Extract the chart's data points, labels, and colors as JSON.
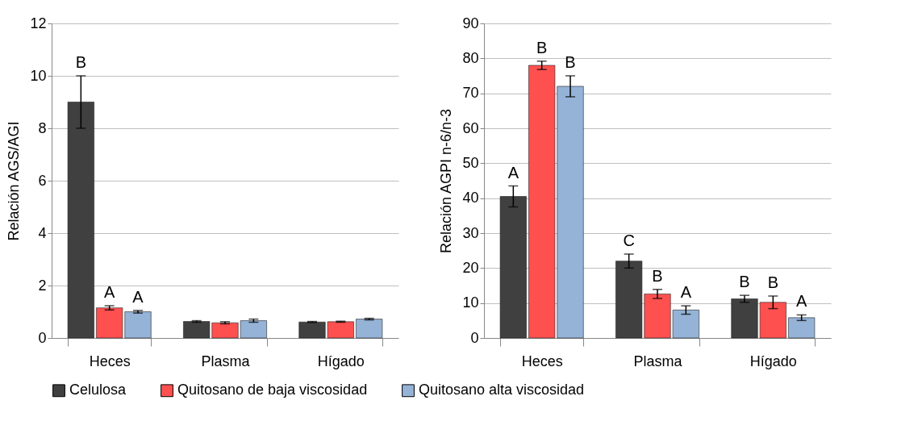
{
  "chart_data": [
    {
      "type": "bar",
      "ylabel": "Relación  AGS/AGI",
      "categories": [
        "Heces",
        "Plasma",
        "Hígado"
      ],
      "ylim": [
        0,
        12
      ],
      "yticks": [
        0,
        2,
        4,
        6,
        8,
        10,
        12
      ],
      "grid": "y",
      "legend": "bottom",
      "series": [
        {
          "name": "Celulosa",
          "color": "#404040",
          "values": [
            9.0,
            0.63,
            0.61
          ],
          "errors": [
            1.0,
            0.03,
            0.02
          ],
          "value_labels": [
            "B",
            null,
            null
          ]
        },
        {
          "name": "Quitosano de baja viscosidad",
          "color": "#ff5050",
          "values": [
            1.15,
            0.58,
            0.62
          ],
          "errors": [
            0.08,
            0.04,
            0.02
          ],
          "value_labels": [
            "A",
            null,
            null
          ]
        },
        {
          "name": "Quitosano alta viscosidad",
          "color": "#95b3d7",
          "values": [
            1.0,
            0.66,
            0.72
          ],
          "errors": [
            0.05,
            0.06,
            0.03
          ],
          "value_labels": [
            "A",
            null,
            null
          ]
        }
      ]
    },
    {
      "type": "bar",
      "ylabel": "Relación  AGPI n-6/n-3",
      "categories": [
        "Heces",
        "Plasma",
        "Hígado"
      ],
      "ylim": [
        0,
        90
      ],
      "yticks": [
        0,
        10,
        20,
        30,
        40,
        50,
        60,
        70,
        80,
        90
      ],
      "grid": "y",
      "legend": "bottom",
      "series": [
        {
          "name": "Celulosa",
          "color": "#404040",
          "values": [
            40.5,
            22,
            11.2
          ],
          "errors": [
            3,
            2,
            1
          ],
          "value_labels": [
            "A",
            "C",
            "B"
          ]
        },
        {
          "name": "Quitosano de baja viscosidad",
          "color": "#ff5050",
          "values": [
            78,
            12.6,
            10.2
          ],
          "errors": [
            1.2,
            1.3,
            1.8
          ],
          "value_labels": [
            "B",
            "B",
            "B"
          ]
        },
        {
          "name": "Quitosano alta viscosidad",
          "color": "#95b3d7",
          "values": [
            72,
            8,
            5.8
          ],
          "errors": [
            3,
            1.2,
            0.8
          ],
          "value_labels": [
            "B",
            "A",
            "A"
          ]
        }
      ]
    }
  ]
}
